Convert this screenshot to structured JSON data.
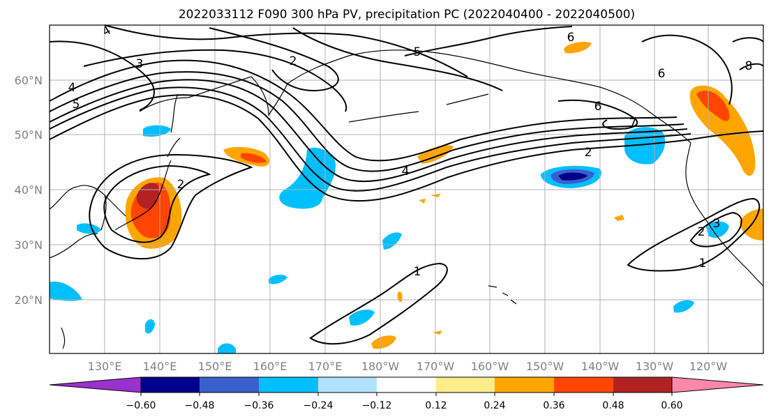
{
  "title": "2022033112 F090 300 hPa PV, precipitation PC (2022040400 - 2022040500)",
  "lat_labels": [
    "60°N",
    "50°N",
    "40°N",
    "30°N",
    "20°N"
  ],
  "lon_labels": [
    "130°E",
    "140°E",
    "150°E",
    "160°E",
    "170°E",
    "180°W",
    "170°W",
    "160°W",
    "150°W",
    "140°W",
    "130°W",
    "120°W"
  ],
  "contour_labels": {
    "c1": "4",
    "c2": "3",
    "c3": "4",
    "c4": "5",
    "c5": "2",
    "c6": "2",
    "c7": "5",
    "c8": "6",
    "c9": "6",
    "c10": "6",
    "c11": "7",
    "c12": "2",
    "c13": "4",
    "c14": "1",
    "c15": "1",
    "c16": "2",
    "c17": "8",
    "c18": "3"
  },
  "colorbar": {
    "ticks": [
      "−0.60",
      "−0.48",
      "−0.36",
      "−0.24",
      "−0.12",
      "0.12",
      "0.24",
      "0.36",
      "0.48",
      "0.60"
    ],
    "colors": [
      "#9932cc",
      "#00008b",
      "#3a5fcd",
      "#00bfff",
      "#b0e2ff",
      "#ffffff",
      "#ffec8b",
      "#ffa500",
      "#ff4500",
      "#b22222",
      "#ff88aa"
    ]
  },
  "colors": {
    "frame": "#000000",
    "grid": "#b0b0b0",
    "tick_text": "#808080",
    "pv_contour": "#000000"
  }
}
